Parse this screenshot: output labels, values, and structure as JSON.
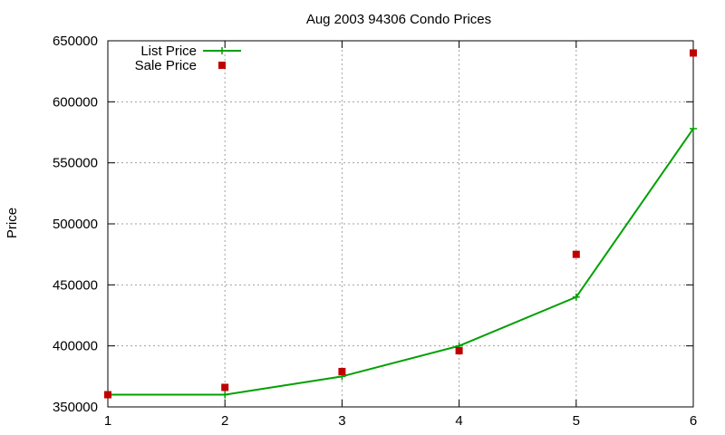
{
  "chart_data": {
    "type": "line",
    "title": "Aug 2003 94306 Condo Prices",
    "xlabel": "",
    "ylabel": "Price",
    "xlim": [
      1,
      6
    ],
    "ylim": [
      350000,
      650000
    ],
    "x_ticks": [
      1,
      2,
      3,
      4,
      5,
      6
    ],
    "y_ticks": [
      350000,
      400000,
      450000,
      500000,
      550000,
      600000,
      650000
    ],
    "grid": true,
    "legend_position": "top-left",
    "series": [
      {
        "name": "List Price",
        "style": "line-with-plus-markers",
        "color": "#00a000",
        "x": [
          1,
          2,
          3,
          4,
          5,
          6
        ],
        "values": [
          360000,
          360000,
          375000,
          400000,
          440000,
          578000
        ]
      },
      {
        "name": "Sale Price",
        "style": "square-points",
        "color": "#c00000",
        "x": [
          1,
          2,
          3,
          4,
          5,
          6
        ],
        "values": [
          360000,
          366000,
          379000,
          396000,
          475000,
          640000
        ]
      }
    ]
  }
}
